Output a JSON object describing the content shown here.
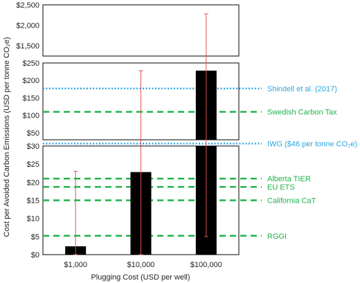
{
  "chart_data": {
    "type": "bar",
    "xlabel": "Plugging Cost (USD per well)",
    "ylabel": "Cost per Avoided Carbon Emissions (USD per tonne CO₂e)",
    "categories": [
      "$1,000",
      "$10,000",
      "$100,000"
    ],
    "values": [
      2.3,
      22.8,
      228
    ],
    "error_bars": [
      {
        "low": 0,
        "high": 23
      },
      {
        "low": 0,
        "high": 228
      },
      {
        "low": 5,
        "high": 2280
      }
    ],
    "bar_color": "#000000",
    "error_color": "#e05050",
    "panels": [
      {
        "name": "upper",
        "ylim": [
          1250,
          2500
        ],
        "ticks": [
          "$1,500",
          "$2,000",
          "$2,500"
        ],
        "tick_values": [
          1500,
          2000,
          2500
        ]
      },
      {
        "name": "middle",
        "ylim": [
          30,
          250
        ],
        "ticks": [
          "$50",
          "$100",
          "$150",
          "$200",
          "$250"
        ],
        "tick_values": [
          50,
          100,
          150,
          200,
          250
        ]
      },
      {
        "name": "lower",
        "ylim": [
          0,
          30
        ],
        "ticks": [
          "$0",
          "$5",
          "$10",
          "$15",
          "$20",
          "$25",
          "$30"
        ],
        "tick_values": [
          0,
          5,
          10,
          15,
          20,
          25,
          30
        ]
      }
    ],
    "reference_lines": [
      {
        "label": "Shindell et al. (2017)",
        "value": 177,
        "panel": "middle",
        "style": "dotted",
        "color": "#2aa7df"
      },
      {
        "label": "Swedish Carbon Tax",
        "value": 110,
        "panel": "middle",
        "style": "dashed",
        "color": "#1db34a"
      },
      {
        "label": "IWG ($46 per tonne CO₂e)",
        "value": 46,
        "panel": "gap",
        "style": "dotted",
        "color": "#2aa7df"
      },
      {
        "label": "Alberta TIER",
        "value": 21,
        "panel": "lower",
        "style": "dashed",
        "color": "#1db34a"
      },
      {
        "label": "EU ETS",
        "value": 18.7,
        "panel": "lower",
        "style": "dashed",
        "color": "#1db34a"
      },
      {
        "label": "California CaT",
        "value": 15,
        "panel": "lower",
        "style": "dashed",
        "color": "#1db34a"
      },
      {
        "label": "RGGI",
        "value": 5.2,
        "panel": "lower",
        "style": "dashed",
        "color": "#1db34a"
      }
    ]
  }
}
